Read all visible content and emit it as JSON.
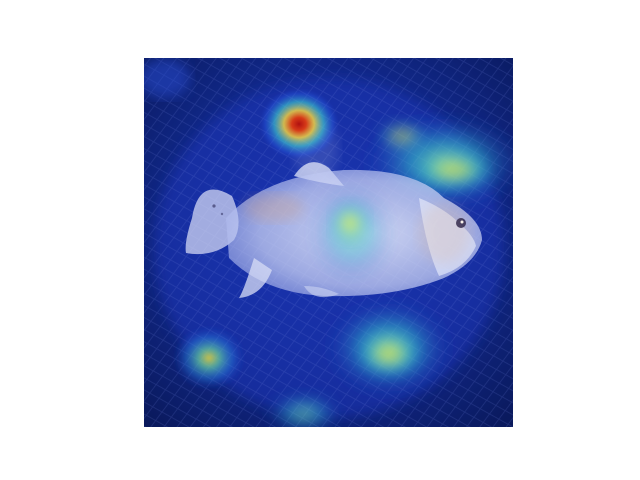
{
  "figure": {
    "description_kind": "attention-heatmap-overlay",
    "colormap": "jet",
    "colors": {
      "background": "#ffffff",
      "low": "#0a1a6e",
      "mid_low": "#1f3fd8",
      "mid": "#2fd6c8",
      "mid_high": "#f0e040",
      "high": "#d01818"
    },
    "heat_levels": {
      "dorsal_fin_hotspot": 1.0,
      "fish_body_center": 0.75,
      "upper_right_region": 0.6,
      "lower_center_region": 0.55,
      "lower_left_spot": 0.5,
      "bottom_center_spot": 0.4
    }
  }
}
